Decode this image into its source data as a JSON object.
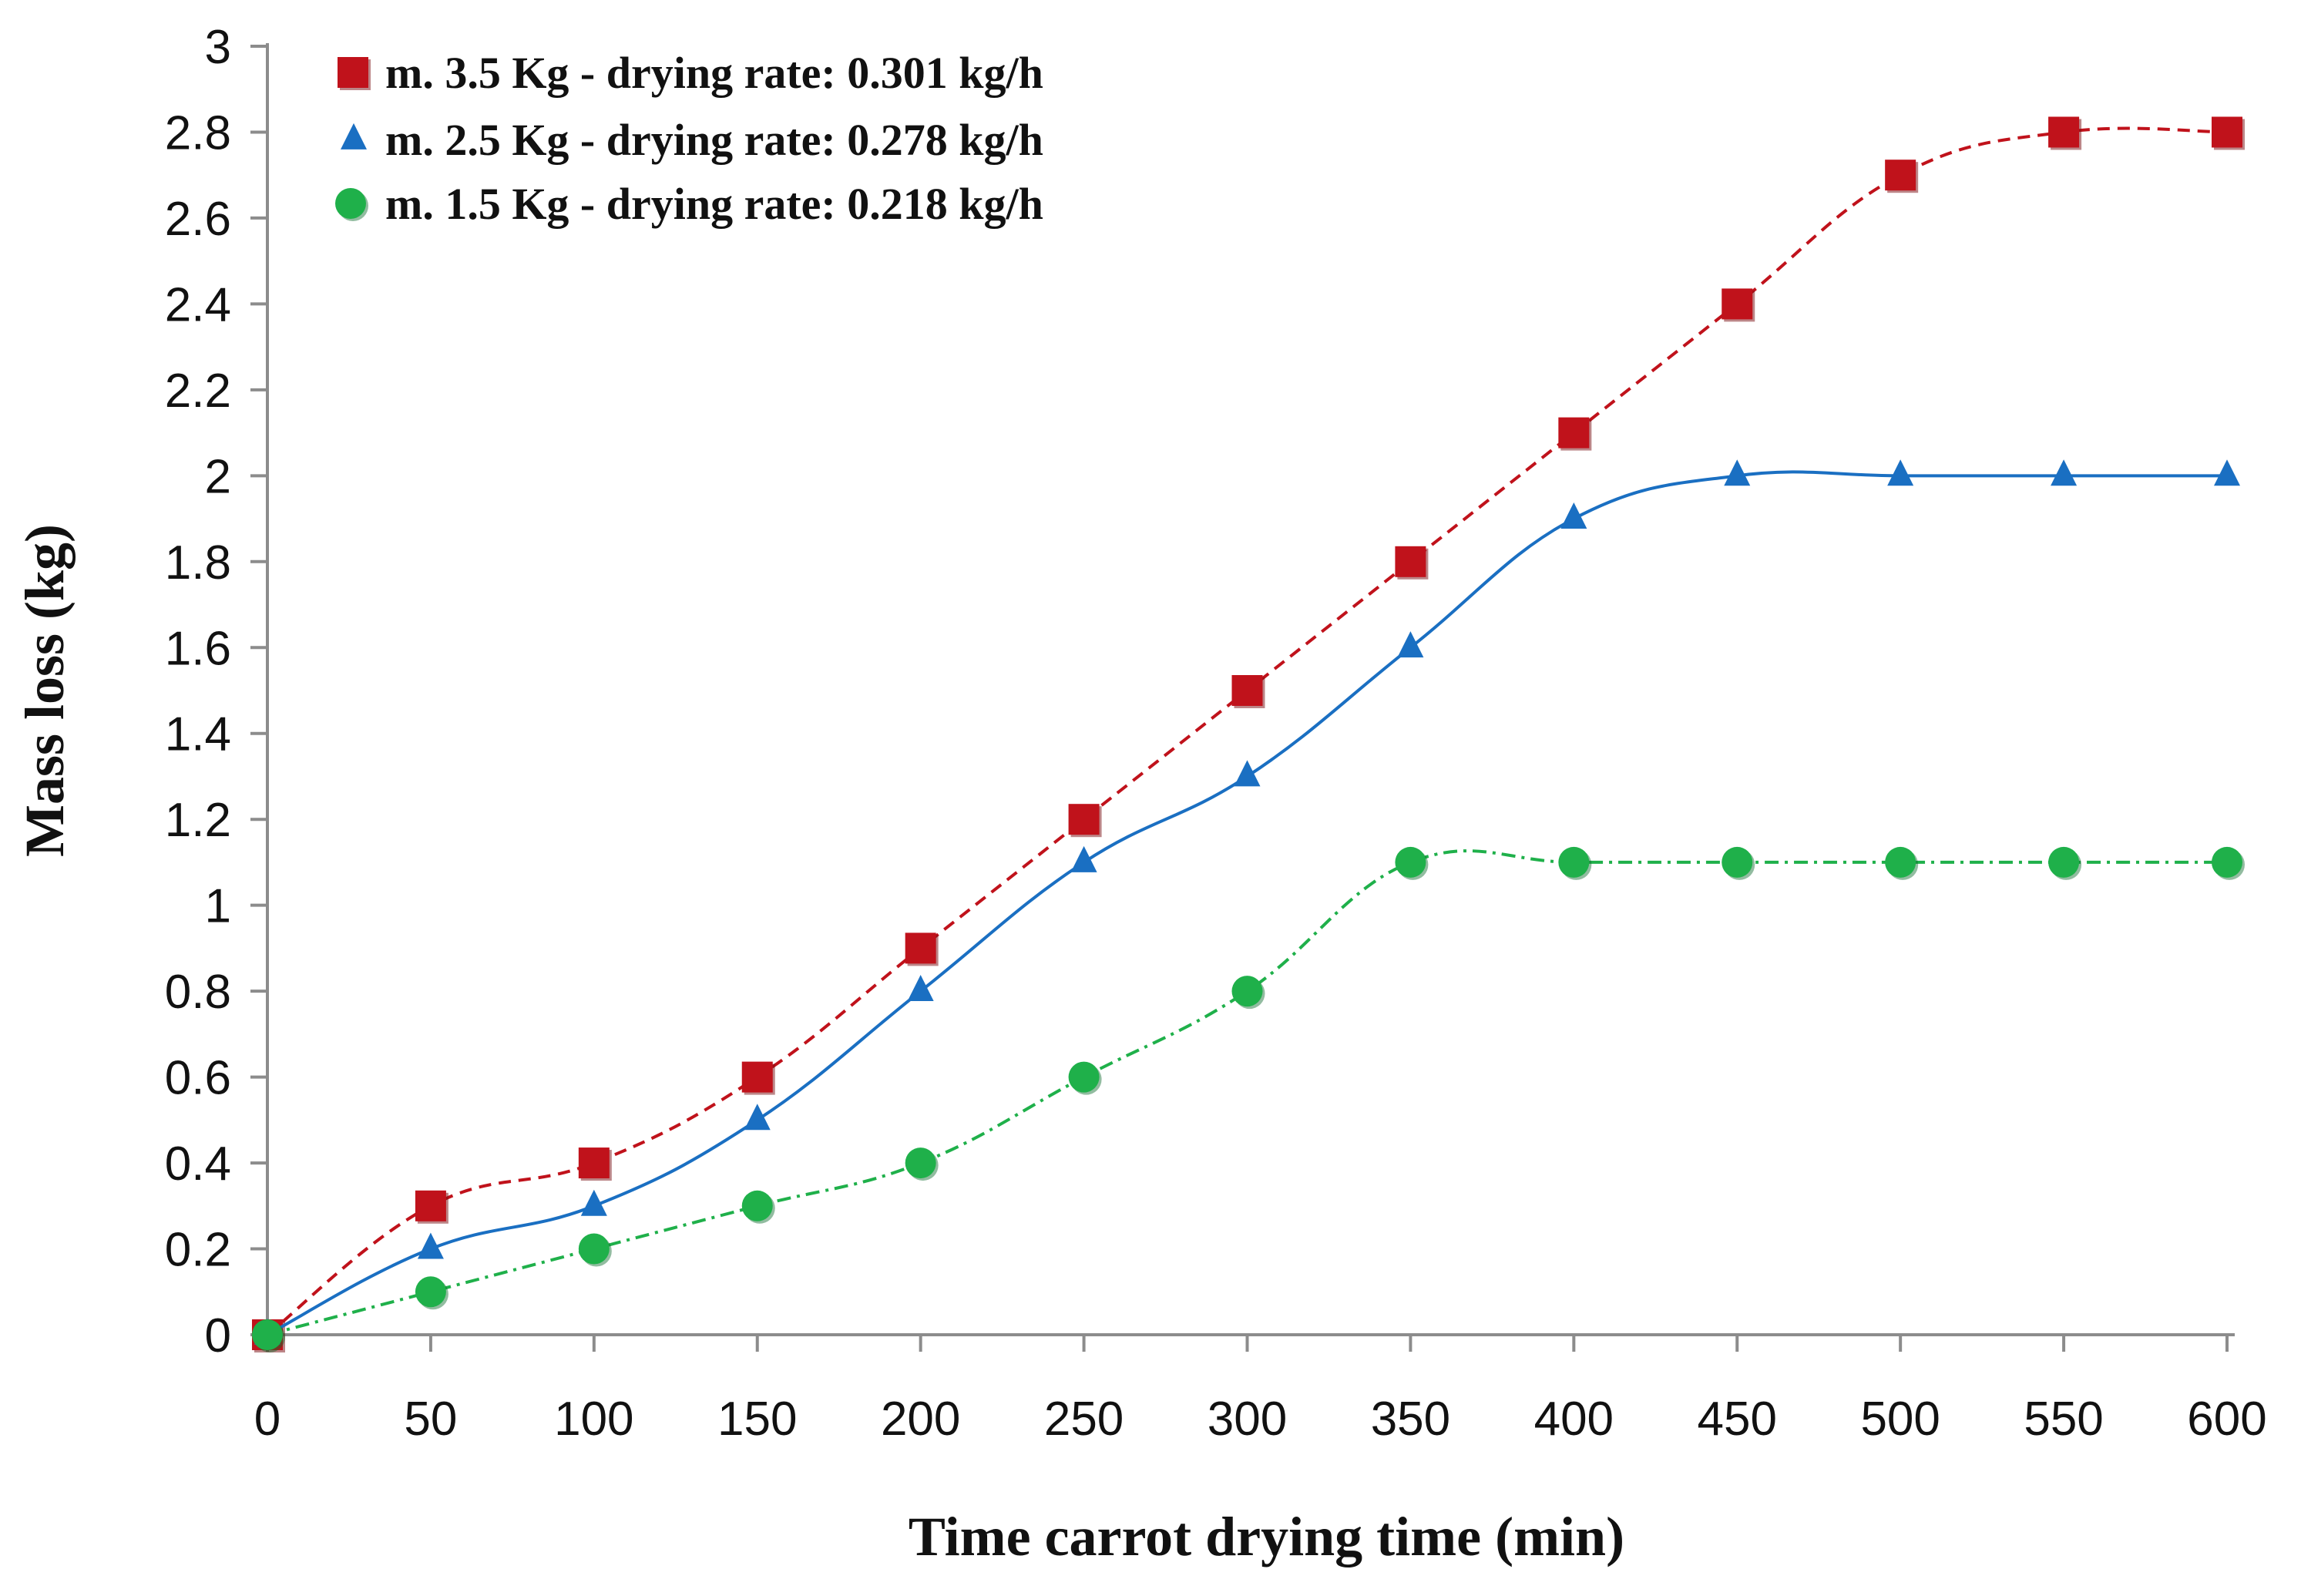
{
  "chart_data": {
    "type": "line",
    "title": "",
    "xlabel": "Time carrot drying time (min)",
    "ylabel": "Mass loss (kg)",
    "x": [
      0,
      50,
      100,
      150,
      200,
      250,
      300,
      350,
      400,
      450,
      500,
      550,
      600
    ],
    "xticks": [
      "0",
      "50",
      "100",
      "150",
      "200",
      "250",
      "300",
      "350",
      "400",
      "450",
      "500",
      "550",
      "600"
    ],
    "yticks": [
      "0",
      "0.2",
      "0.4",
      "0.6",
      "0.8",
      "1",
      "1.2",
      "1.4",
      "1.6",
      "1.8",
      "2",
      "2.2",
      "2.4",
      "2.6",
      "2.8",
      "3"
    ],
    "xlim": [
      0,
      600
    ],
    "ylim": [
      0,
      3
    ],
    "grid": false,
    "legend_position": "top-left",
    "series": [
      {
        "name": "m. 3.5 Kg - drying rate: 0.301 kg/h",
        "marker": "square",
        "line_style": "dashed",
        "color": "#c0121b",
        "values": [
          0,
          0.3,
          0.4,
          0.6,
          0.9,
          1.2,
          1.5,
          1.8,
          2.1,
          2.4,
          2.7,
          2.8,
          2.8
        ]
      },
      {
        "name": "m. 2.5 Kg - drying rate: 0.278 kg/h",
        "marker": "triangle",
        "line_style": "solid",
        "color": "#1a6fc2",
        "values": [
          0,
          0.2,
          0.3,
          0.5,
          0.8,
          1.1,
          1.3,
          1.6,
          1.9,
          2.0,
          2.0,
          2.0,
          2.0
        ]
      },
      {
        "name": "m. 1.5 Kg - drying rate: 0.218 kg/h",
        "marker": "circle",
        "line_style": "dash-dot",
        "color": "#1fb04a",
        "values": [
          0,
          0.1,
          0.2,
          0.3,
          0.4,
          0.6,
          0.8,
          1.1,
          1.1,
          1.1,
          1.1,
          1.1,
          1.1
        ]
      }
    ]
  }
}
